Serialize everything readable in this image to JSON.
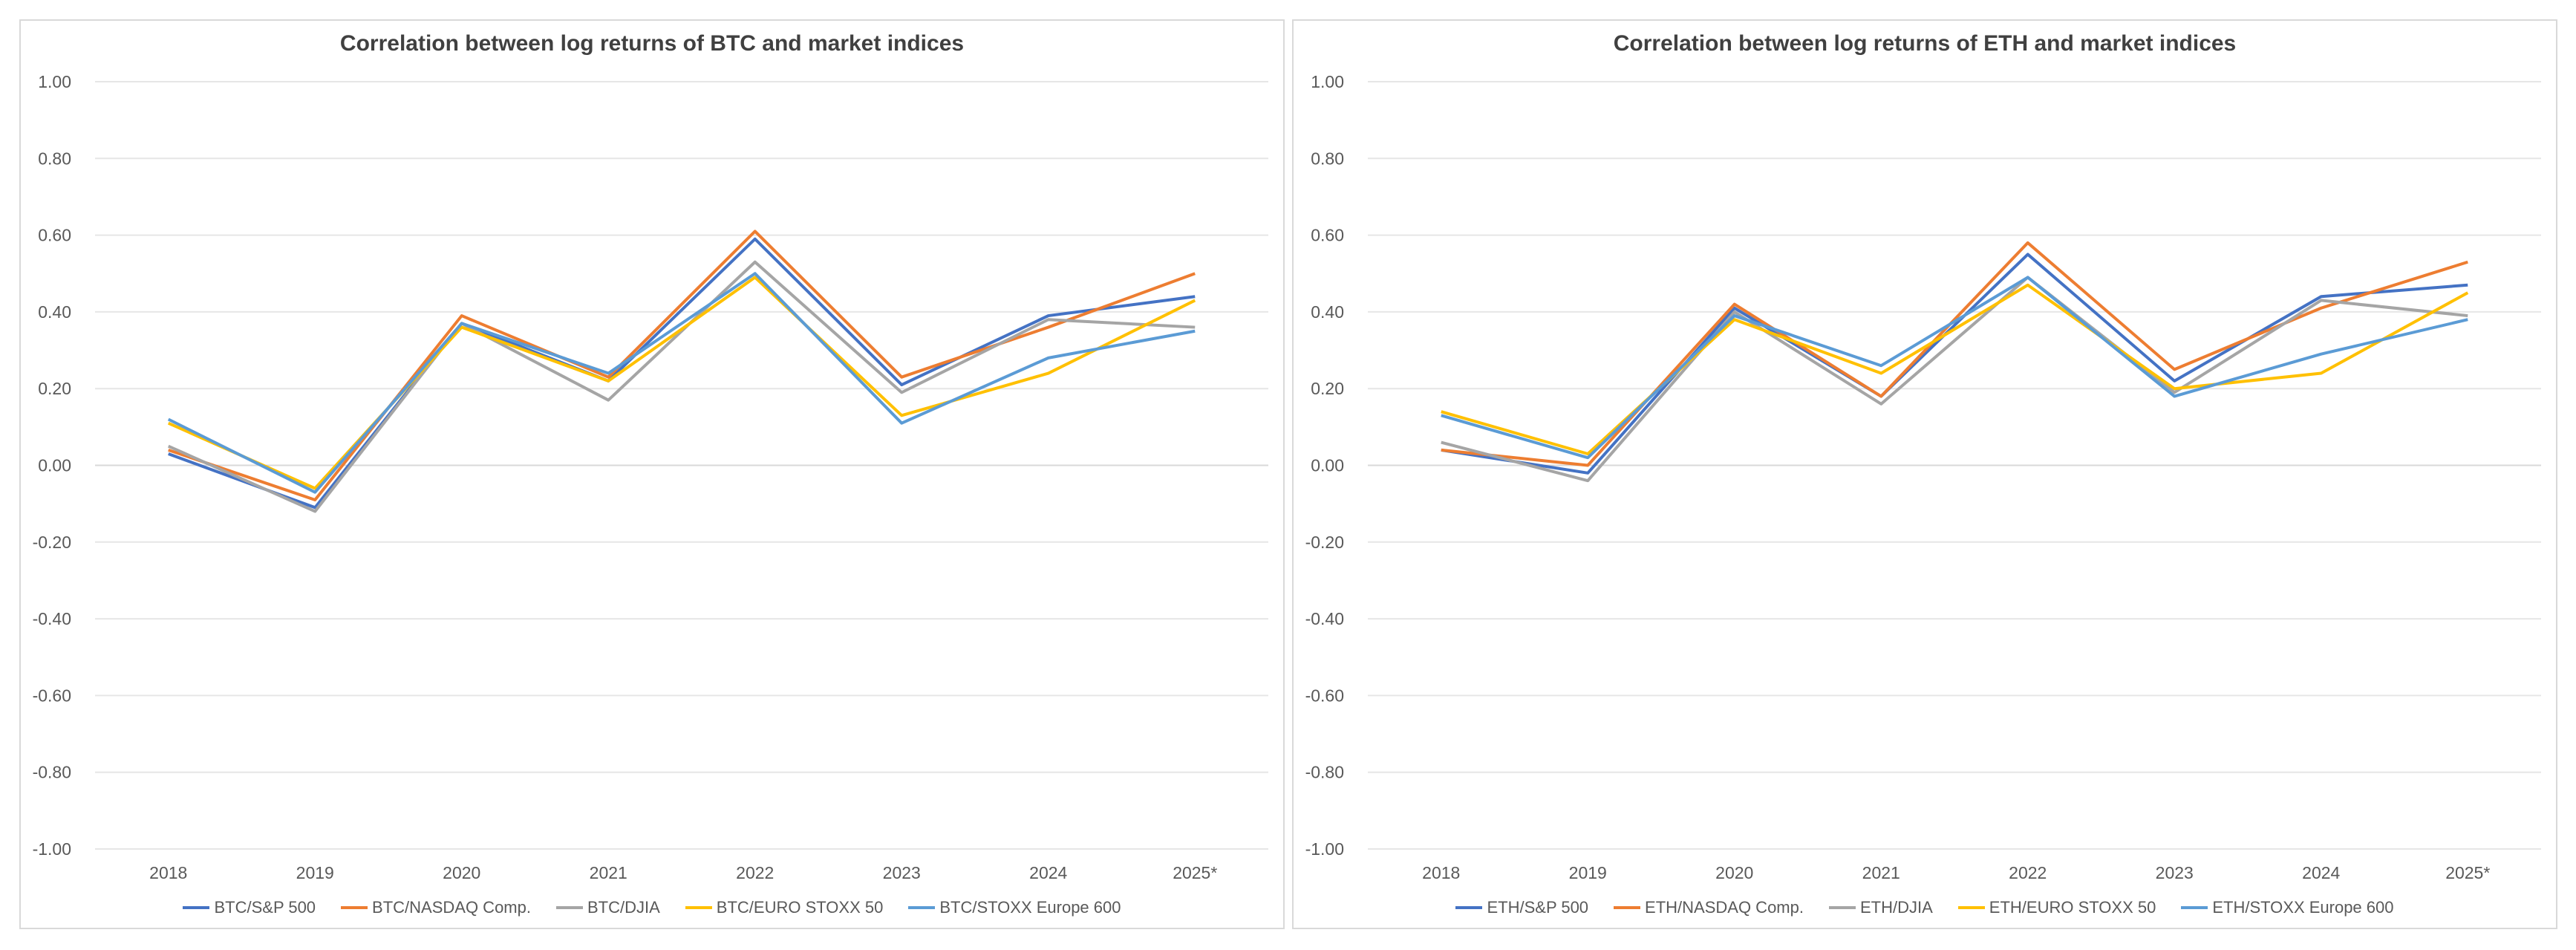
{
  "colors": {
    "series": [
      "#4472C4",
      "#ED7D31",
      "#A5A5A5",
      "#FFC000",
      "#5B9BD5"
    ],
    "grid": "#e6e6e6",
    "axis": "#d9d9d9"
  },
  "chart_data": [
    {
      "type": "line",
      "title": "Correlation between log returns of BTC and market indices",
      "xlabel": "",
      "ylabel": "",
      "categories": [
        "2018",
        "2019",
        "2020",
        "2021",
        "2022",
        "2023",
        "2024",
        "2025*"
      ],
      "ylim": [
        -1.0,
        1.0
      ],
      "yticks": [
        "1.00",
        "0.80",
        "0.60",
        "0.40",
        "0.20",
        "0.00",
        "-0.20",
        "-0.40",
        "-0.60",
        "-0.80",
        "-1.00"
      ],
      "grid": true,
      "legend": "bottom",
      "series": [
        {
          "name": "BTC/S&P 500",
          "values": [
            0.03,
            -0.11,
            0.37,
            0.22,
            0.59,
            0.21,
            0.39,
            0.44
          ]
        },
        {
          "name": "BTC/NASDAQ Comp.",
          "values": [
            0.04,
            -0.09,
            0.39,
            0.23,
            0.61,
            0.23,
            0.36,
            0.5
          ]
        },
        {
          "name": "BTC/DJIA",
          "values": [
            0.05,
            -0.12,
            0.37,
            0.17,
            0.53,
            0.19,
            0.38,
            0.36
          ]
        },
        {
          "name": "BTC/EURO STOXX 50",
          "values": [
            0.11,
            -0.06,
            0.36,
            0.22,
            0.49,
            0.13,
            0.24,
            0.43
          ]
        },
        {
          "name": "BTC/STOXX Europe 600",
          "values": [
            0.12,
            -0.07,
            0.37,
            0.24,
            0.5,
            0.11,
            0.28,
            0.35
          ]
        }
      ]
    },
    {
      "type": "line",
      "title": "Correlation between log returns of ETH and market indices",
      "xlabel": "",
      "ylabel": "",
      "categories": [
        "2018",
        "2019",
        "2020",
        "2021",
        "2022",
        "2023",
        "2024",
        "2025*"
      ],
      "ylim": [
        -1.0,
        1.0
      ],
      "yticks": [
        "1.00",
        "0.80",
        "0.60",
        "0.40",
        "0.20",
        "0.00",
        "-0.20",
        "-0.40",
        "-0.60",
        "-0.80",
        "-1.00"
      ],
      "grid": true,
      "legend": "bottom",
      "series": [
        {
          "name": "ETH/S&P 500",
          "values": [
            0.04,
            -0.02,
            0.41,
            0.18,
            0.55,
            0.22,
            0.44,
            0.47
          ]
        },
        {
          "name": "ETH/NASDAQ Comp.",
          "values": [
            0.04,
            0.0,
            0.42,
            0.18,
            0.58,
            0.25,
            0.41,
            0.53
          ]
        },
        {
          "name": "ETH/DJIA",
          "values": [
            0.06,
            -0.04,
            0.4,
            0.16,
            0.49,
            0.19,
            0.43,
            0.39
          ]
        },
        {
          "name": "ETH/EURO STOXX 50",
          "values": [
            0.14,
            0.03,
            0.38,
            0.24,
            0.47,
            0.2,
            0.24,
            0.45
          ]
        },
        {
          "name": "ETH/STOXX Europe 600",
          "values": [
            0.13,
            0.02,
            0.39,
            0.26,
            0.49,
            0.18,
            0.29,
            0.38
          ]
        }
      ]
    }
  ]
}
